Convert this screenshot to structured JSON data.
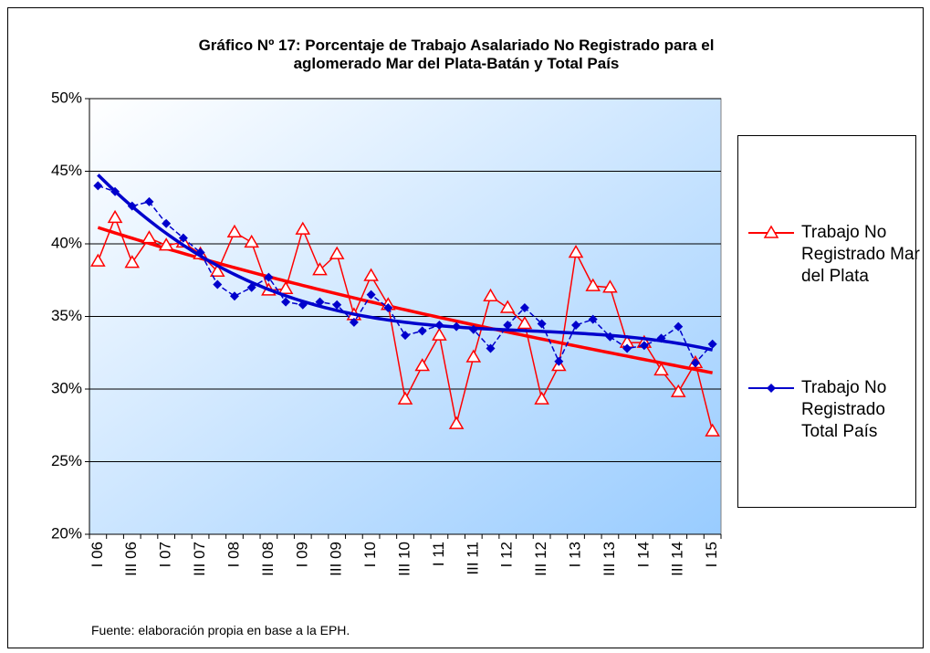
{
  "chart_data": {
    "type": "line",
    "title": "Gráfico Nº 17: Porcentaje de Trabajo Asalariado No Registrado para el aglomerado Mar del Plata-Batán y Total País",
    "source": "Fuente: elaboración propia en base a la EPH.",
    "categories": [
      "I 06",
      null,
      "III 06",
      null,
      "I 07",
      null,
      "III 07",
      null,
      "I 08",
      null,
      "III 08",
      null,
      "I 09",
      null,
      "III 09",
      null,
      "I 10",
      null,
      "III 10",
      null,
      "I 11",
      null,
      "III 11",
      null,
      "I 12",
      null,
      "III 12",
      null,
      "I 13",
      null,
      "III 13",
      null,
      "I 14",
      null,
      "III 14",
      null,
      "I 15"
    ],
    "series": [
      {
        "name": "Trabajo No Registrado Mar del Plata",
        "color": "#ff0000",
        "marker": "triangle",
        "values": [
          38.8,
          41.8,
          38.7,
          40.4,
          39.9,
          40.1,
          39.3,
          38.1,
          40.8,
          40.1,
          36.8,
          36.9,
          41.0,
          38.2,
          39.3,
          35.1,
          37.8,
          35.8,
          29.3,
          31.6,
          33.7,
          27.6,
          32.2,
          36.4,
          35.6,
          34.5,
          29.3,
          31.6,
          39.4,
          37.1,
          37.0,
          33.2,
          33.2,
          31.3,
          29.8,
          31.8,
          27.1
        ]
      },
      {
        "name": "Trabajo No Registrado Total País",
        "color": "#0000cc",
        "marker": "diamond",
        "values": [
          44.0,
          43.6,
          42.6,
          42.9,
          41.4,
          40.4,
          39.4,
          37.2,
          36.4,
          37.0,
          37.7,
          36.0,
          35.8,
          36.0,
          35.8,
          34.6,
          36.5,
          35.6,
          33.7,
          34.0,
          34.4,
          34.3,
          34.1,
          32.8,
          34.4,
          35.6,
          34.5,
          31.9,
          34.4,
          34.8,
          33.6,
          32.8,
          33.0,
          33.5,
          34.3,
          31.8,
          33.1
        ]
      }
    ],
    "trendline": "polynomial",
    "ylim": [
      20,
      50
    ],
    "yticks": [
      {
        "value": 20,
        "label": "20%"
      },
      {
        "value": 25,
        "label": "25%"
      },
      {
        "value": 30,
        "label": "30%"
      },
      {
        "value": 35,
        "label": "35%"
      },
      {
        "value": 40,
        "label": "40%"
      },
      {
        "value": 45,
        "label": "45%"
      },
      {
        "value": 50,
        "label": "50%"
      }
    ],
    "grid": true,
    "legend": "right"
  }
}
